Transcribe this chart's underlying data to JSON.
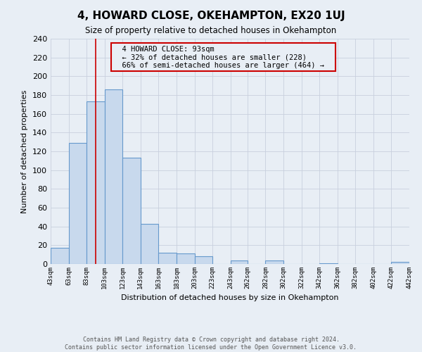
{
  "title": "4, HOWARD CLOSE, OKEHAMPTON, EX20 1UJ",
  "subtitle": "Size of property relative to detached houses in Okehampton",
  "xlabel": "Distribution of detached houses by size in Okehampton",
  "ylabel": "Number of detached properties",
  "footer_line1": "Contains HM Land Registry data © Crown copyright and database right 2024.",
  "footer_line2": "Contains public sector information licensed under the Open Government Licence v3.0.",
  "bin_edges": [
    43,
    63,
    83,
    103,
    123,
    143,
    163,
    183,
    203,
    223,
    243,
    262,
    282,
    302,
    322,
    342,
    362,
    382,
    402,
    422,
    442
  ],
  "bin_counts": [
    17,
    129,
    173,
    186,
    113,
    43,
    12,
    11,
    8,
    0,
    4,
    0,
    4,
    0,
    0,
    1,
    0,
    0,
    0,
    2
  ],
  "bar_facecolor": "#c8d9ed",
  "bar_edgecolor": "#6699cc",
  "grid_color": "#c8d0de",
  "background_color": "#e8eef5",
  "vline_x": 93,
  "vline_color": "#cc0000",
  "annotation_title": "4 HOWARD CLOSE: 93sqm",
  "annotation_line1": "← 32% of detached houses are smaller (228)",
  "annotation_line2": "66% of semi-detached houses are larger (464) →",
  "annotation_box_edgecolor": "#cc0000",
  "ylim": [
    0,
    240
  ],
  "yticks": [
    0,
    20,
    40,
    60,
    80,
    100,
    120,
    140,
    160,
    180,
    200,
    220,
    240
  ],
  "tick_labels": [
    "43sqm",
    "63sqm",
    "83sqm",
    "103sqm",
    "123sqm",
    "143sqm",
    "163sqm",
    "183sqm",
    "203sqm",
    "223sqm",
    "243sqm",
    "262sqm",
    "282sqm",
    "302sqm",
    "322sqm",
    "342sqm",
    "362sqm",
    "382sqm",
    "402sqm",
    "422sqm",
    "442sqm"
  ]
}
